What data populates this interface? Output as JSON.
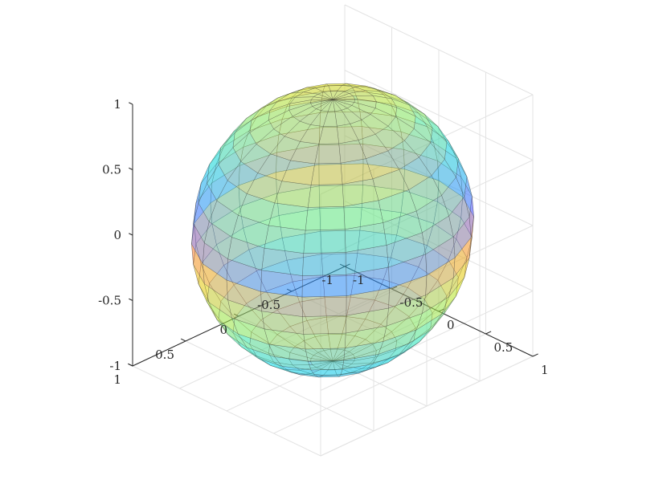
{
  "chart_data": {
    "type": "surface",
    "surface": "unit sphere",
    "radius": 1,
    "center": [
      0,
      0,
      0
    ],
    "mesh": {
      "latitude_bands": 20,
      "longitude_sectors": 20
    },
    "face_alpha": 0.35,
    "colormap": [
      "#4d4dff",
      "#00e6e6",
      "#e6e600",
      "#ff4d4d"
    ],
    "color_axis_note": "color varies along vertical coordinate",
    "axes": {
      "x": {
        "lim": [
          -1,
          1
        ],
        "ticks": [
          "-1",
          "-0.5",
          "0",
          "0.5",
          "1"
        ]
      },
      "y": {
        "lim": [
          -1,
          1
        ],
        "ticks": [
          "-1",
          "-0.5",
          "0",
          "0.5",
          "1"
        ]
      },
      "z": {
        "lim": [
          -1,
          1
        ],
        "ticks": [
          "-1",
          "-0.5",
          "0",
          "0.5",
          "1"
        ]
      }
    },
    "grid": true,
    "box": false,
    "title": "",
    "xlabel": "",
    "ylabel": "",
    "zlabel": ""
  }
}
